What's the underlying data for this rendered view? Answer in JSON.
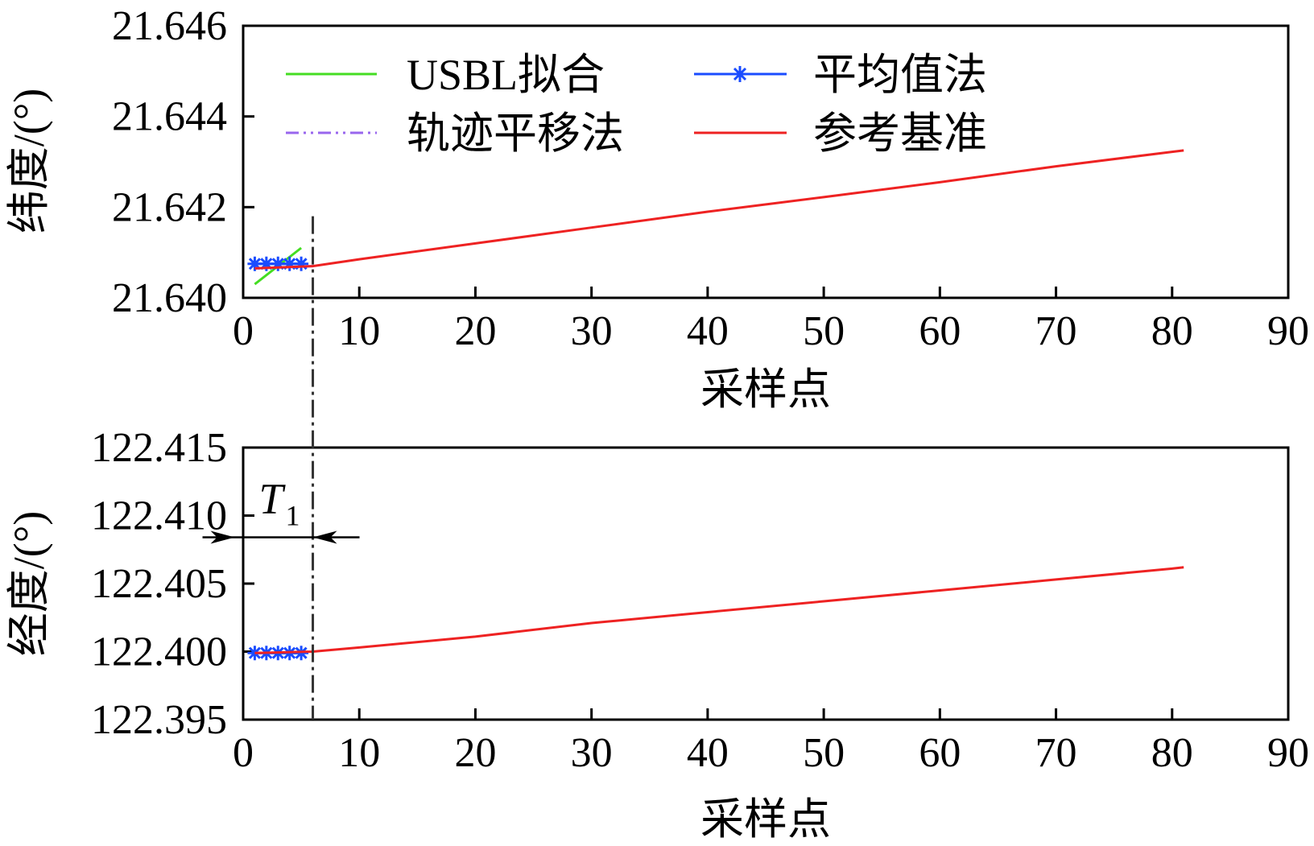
{
  "chart_data": [
    {
      "type": "line",
      "xlabel": "采样点",
      "ylabel": "纬度/(°)",
      "xlim": [
        0,
        90
      ],
      "ylim": [
        21.64,
        21.646
      ],
      "xticks": [
        "0",
        "10",
        "20",
        "30",
        "40",
        "50",
        "60",
        "70",
        "80",
        "90"
      ],
      "yticks": [
        "21.640",
        "21.642",
        "21.644",
        "21.646"
      ],
      "grid": false,
      "legend_position": "top-left",
      "series": [
        {
          "name": "USBL拟合",
          "color": "#44dd22",
          "style": "solid",
          "x": [
            1,
            5
          ],
          "y": [
            21.6403,
            21.6411
          ]
        },
        {
          "name": "平均值法",
          "color": "#1a4cff",
          "style": "solid-star",
          "x": [
            1,
            2,
            3,
            4,
            5
          ],
          "y": [
            21.64075,
            21.64075,
            21.64075,
            21.64075,
            21.64075
          ]
        },
        {
          "name": "轨迹平移法",
          "color": "#9966ee",
          "style": "dashdot",
          "x": [
            1,
            2,
            3,
            4,
            5,
            6
          ],
          "y": [
            21.64065,
            21.64066,
            21.64067,
            21.64068,
            21.64069,
            21.6407
          ]
        },
        {
          "name": "参考基准",
          "color": "#ee2222",
          "style": "solid",
          "x": [
            1,
            6,
            10,
            20,
            30,
            40,
            50,
            60,
            70,
            80,
            81
          ],
          "y": [
            21.64065,
            21.6407,
            21.64085,
            21.6412,
            21.64155,
            21.6419,
            21.64222,
            21.64255,
            21.6429,
            21.64322,
            21.64325
          ]
        }
      ],
      "annotations": [
        {
          "type": "vline",
          "x": 6,
          "style": "dashdot",
          "color": "#333333"
        }
      ]
    },
    {
      "type": "line",
      "xlabel": "采样点",
      "ylabel": "经度/(°)",
      "xlim": [
        0,
        90
      ],
      "ylim": [
        122.395,
        122.415
      ],
      "xticks": [
        "0",
        "10",
        "20",
        "30",
        "40",
        "50",
        "60",
        "70",
        "80",
        "90"
      ],
      "yticks": [
        "122.395",
        "122.400",
        "122.405",
        "122.410",
        "122.415"
      ],
      "grid": false,
      "series": [
        {
          "name": "平均值法",
          "color": "#1a4cff",
          "style": "solid-star",
          "x": [
            1,
            2,
            3,
            4,
            5
          ],
          "y": [
            122.3999,
            122.3999,
            122.3999,
            122.3999,
            122.3999
          ]
        },
        {
          "name": "参考基准",
          "color": "#ee2222",
          "style": "solid",
          "x": [
            1,
            6,
            10,
            20,
            30,
            40,
            50,
            60,
            70,
            80,
            81
          ],
          "y": [
            122.3999,
            122.4,
            122.4003,
            122.4011,
            122.4021,
            122.4029,
            122.4037,
            122.4045,
            122.4053,
            122.4061,
            122.4062
          ]
        }
      ],
      "annotations": [
        {
          "type": "vline",
          "x": 6,
          "style": "dashdot",
          "color": "#333333"
        },
        {
          "type": "interval-arrow",
          "label": "T",
          "subscript": "1",
          "x_from": -3.5,
          "x_to": 6,
          "y": 122.4084
        }
      ]
    }
  ]
}
